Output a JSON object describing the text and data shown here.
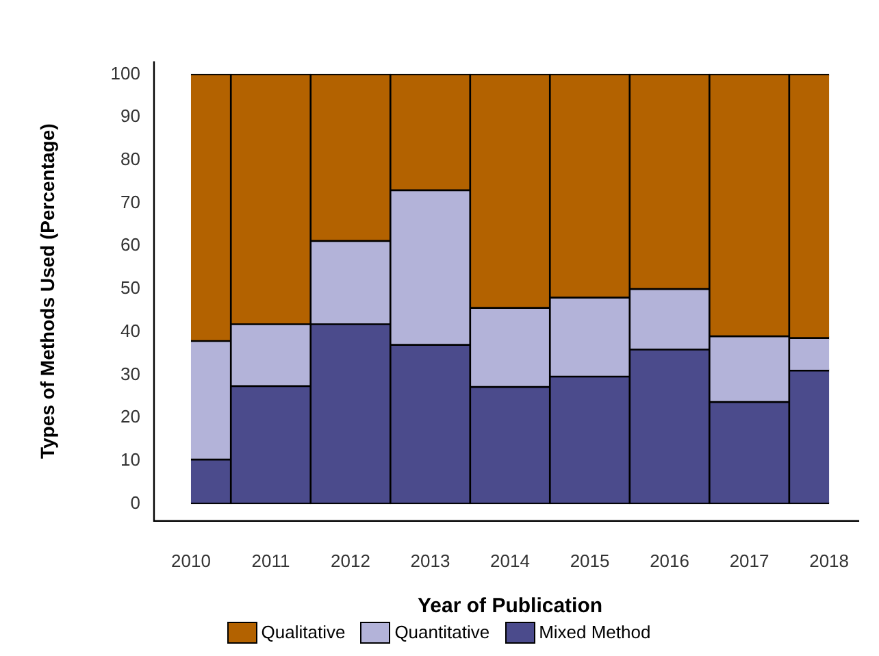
{
  "chart_data": {
    "type": "bar",
    "stacked": true,
    "xlabel": "Year of Publication",
    "ylabel": "Types of Methods Used (Percentage)",
    "categories": [
      "2010",
      "2011",
      "2012",
      "2013",
      "2014",
      "2015",
      "2016",
      "2017",
      "2018"
    ],
    "series": [
      {
        "name": "Mixed Method",
        "color": "#4b4b8c",
        "values": [
          10.3,
          27.4,
          41.8,
          37.0,
          27.2,
          29.6,
          35.9,
          23.7,
          31.0
        ]
      },
      {
        "name": "Quantitative",
        "color": "#b3b3d9",
        "values": [
          27.6,
          14.4,
          19.4,
          36.0,
          18.4,
          18.4,
          14.1,
          15.3,
          7.6
        ]
      },
      {
        "name": "Qualitative",
        "color": "#b36200",
        "values": [
          62.1,
          58.2,
          38.8,
          27.0,
          54.4,
          52.0,
          50.0,
          61.0,
          61.4
        ]
      }
    ],
    "ylim": [
      -4,
      103
    ],
    "yticks": [
      0,
      10,
      20,
      30,
      40,
      50,
      60,
      70,
      80,
      90,
      100
    ],
    "grid": false,
    "legend": "bottom"
  }
}
